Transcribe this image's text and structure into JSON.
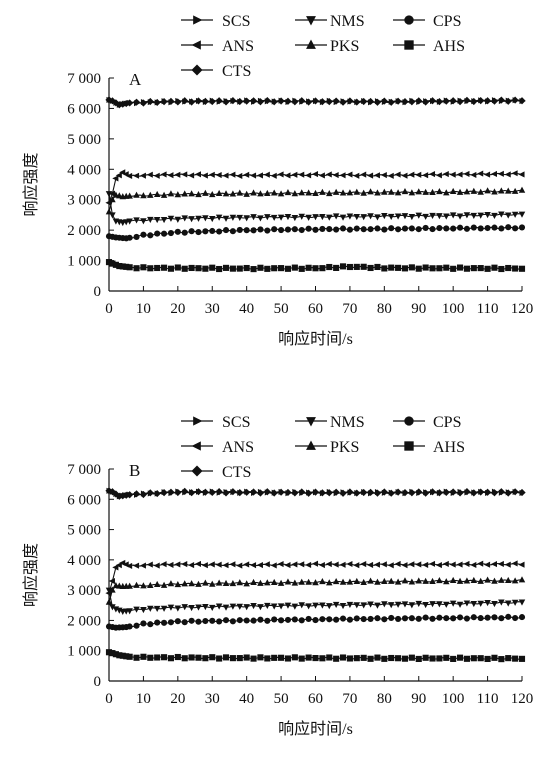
{
  "chart_data": [
    {
      "type": "line",
      "panel_label": "A",
      "xlabel": "响应时间/s",
      "ylabel": "响应强度",
      "xlim": [
        0,
        120
      ],
      "ylim": [
        0,
        7000
      ],
      "xticks": [
        0,
        10,
        20,
        30,
        40,
        50,
        60,
        70,
        80,
        90,
        100,
        110,
        120
      ],
      "xtick_labels": [
        "0",
        "10",
        "20",
        "30",
        "40",
        "50",
        "60",
        "70",
        "80",
        "90",
        "100",
        "110",
        "120"
      ],
      "yticks": [
        0,
        1000,
        2000,
        3000,
        4000,
        5000,
        6000,
        7000
      ],
      "ytick_labels": [
        "0",
        "1 000",
        "2 000",
        "3 000",
        "4 000",
        "5 000",
        "6 000",
        "7 000"
      ],
      "grid": false,
      "legend_position": "top",
      "series": [
        {
          "name": "SCS",
          "marker": "triangle-right",
          "x": [
            0,
            1,
            3,
            6,
            10,
            20,
            40,
            60,
            80,
            100,
            120
          ],
          "values": [
            6280,
            6250,
            6120,
            6180,
            6200,
            6230,
            6240,
            6230,
            6220,
            6240,
            6260
          ]
        },
        {
          "name": "NMS",
          "marker": "triangle-down",
          "x": [
            0,
            1,
            2,
            4,
            6,
            10,
            20,
            40,
            60,
            80,
            100,
            120
          ],
          "values": [
            3200,
            2500,
            2300,
            2250,
            2300,
            2330,
            2380,
            2420,
            2440,
            2460,
            2480,
            2520
          ]
        },
        {
          "name": "CPS",
          "marker": "circle",
          "x": [
            0,
            2,
            5,
            10,
            20,
            40,
            60,
            80,
            100,
            120
          ],
          "values": [
            1800,
            1760,
            1730,
            1830,
            1930,
            2000,
            2030,
            2040,
            2060,
            2080
          ]
        },
        {
          "name": "ANS",
          "marker": "triangle-left",
          "x": [
            0,
            1,
            2,
            4,
            6,
            10,
            20,
            40,
            60,
            80,
            100,
            120
          ],
          "values": [
            2900,
            3200,
            3700,
            3900,
            3780,
            3800,
            3820,
            3800,
            3820,
            3800,
            3830,
            3850
          ]
        },
        {
          "name": "PKS",
          "marker": "triangle-up",
          "x": [
            0,
            1,
            2,
            4,
            6,
            10,
            20,
            40,
            60,
            80,
            100,
            120
          ],
          "values": [
            2600,
            3000,
            3150,
            3100,
            3120,
            3140,
            3180,
            3200,
            3220,
            3240,
            3250,
            3290
          ]
        },
        {
          "name": "AHS",
          "marker": "square",
          "x": [
            0,
            1,
            3,
            6,
            10,
            20,
            40,
            60,
            70,
            80,
            100,
            120
          ],
          "values": [
            950,
            900,
            820,
            780,
            760,
            750,
            740,
            750,
            800,
            760,
            750,
            740
          ]
        },
        {
          "name": "CTS",
          "marker": "diamond",
          "x": [
            0,
            1,
            3,
            6,
            10,
            20,
            40,
            60,
            80,
            100,
            120
          ],
          "values": [
            6280,
            6250,
            6120,
            6180,
            6200,
            6230,
            6240,
            6230,
            6220,
            6240,
            6260
          ]
        }
      ]
    },
    {
      "type": "line",
      "panel_label": "B",
      "xlabel": "响应时间/s",
      "ylabel": "响应强度",
      "xlim": [
        0,
        120
      ],
      "ylim": [
        0,
        7000
      ],
      "xticks": [
        0,
        10,
        20,
        30,
        40,
        50,
        60,
        70,
        80,
        90,
        100,
        110,
        120
      ],
      "xtick_labels": [
        "0",
        "10",
        "20",
        "30",
        "40",
        "50",
        "60",
        "70",
        "80",
        "90",
        "100",
        "110",
        "120"
      ],
      "yticks": [
        0,
        1000,
        2000,
        3000,
        4000,
        5000,
        6000,
        7000
      ],
      "ytick_labels": [
        "0",
        "1 000",
        "2 000",
        "3 000",
        "4 000",
        "5 000",
        "6 000",
        "7 000"
      ],
      "grid": false,
      "legend_position": "top",
      "series": [
        {
          "name": "SCS",
          "marker": "triangle-right",
          "x": [
            0,
            1,
            3,
            6,
            10,
            20,
            40,
            60,
            80,
            100,
            120
          ],
          "values": [
            6280,
            6250,
            6100,
            6150,
            6180,
            6240,
            6230,
            6220,
            6220,
            6230,
            6230
          ]
        },
        {
          "name": "NMS",
          "marker": "triangle-down",
          "x": [
            0,
            1,
            2,
            4,
            6,
            10,
            20,
            40,
            60,
            80,
            100,
            120
          ],
          "values": [
            3000,
            2450,
            2380,
            2300,
            2320,
            2380,
            2430,
            2470,
            2500,
            2530,
            2550,
            2600
          ]
        },
        {
          "name": "CPS",
          "marker": "circle",
          "x": [
            0,
            2,
            5,
            10,
            20,
            40,
            60,
            80,
            100,
            120
          ],
          "values": [
            1800,
            1760,
            1780,
            1880,
            1960,
            2000,
            2030,
            2060,
            2080,
            2100
          ]
        },
        {
          "name": "ANS",
          "marker": "triangle-left",
          "x": [
            0,
            1,
            2,
            4,
            6,
            10,
            20,
            40,
            60,
            80,
            100,
            120
          ],
          "values": [
            2900,
            3300,
            3750,
            3900,
            3800,
            3820,
            3850,
            3830,
            3850,
            3840,
            3850,
            3860
          ]
        },
        {
          "name": "PKS",
          "marker": "triangle-up",
          "x": [
            0,
            1,
            2,
            4,
            6,
            10,
            20,
            40,
            60,
            80,
            100,
            120
          ],
          "values": [
            2600,
            3000,
            3150,
            3120,
            3130,
            3150,
            3200,
            3230,
            3260,
            3280,
            3300,
            3320
          ]
        },
        {
          "name": "AHS",
          "marker": "square",
          "x": [
            0,
            1,
            3,
            6,
            10,
            20,
            40,
            60,
            80,
            100,
            120
          ],
          "values": [
            950,
            920,
            850,
            800,
            780,
            770,
            760,
            760,
            750,
            750,
            740
          ]
        },
        {
          "name": "CTS",
          "marker": "diamond",
          "x": [
            0,
            1,
            3,
            6,
            10,
            20,
            40,
            60,
            80,
            100,
            120
          ],
          "values": [
            6280,
            6250,
            6100,
            6150,
            6180,
            6240,
            6230,
            6220,
            6220,
            6230,
            6230
          ]
        }
      ]
    }
  ]
}
